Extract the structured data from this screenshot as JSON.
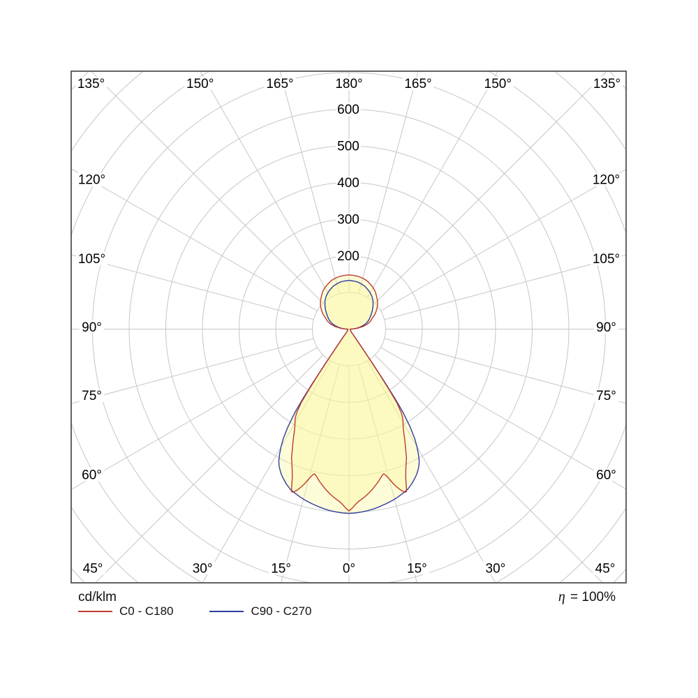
{
  "chart_data": {
    "type": "polar",
    "unit": "cd/klm",
    "efficiency": {
      "symbol": "η",
      "value": "= 100%"
    },
    "radial_ticks": [
      200,
      300,
      400,
      500,
      600
    ],
    "radial_step": 100,
    "radial_max_grid": 1000,
    "angle_step_deg": 15,
    "angle_labels": {
      "top": [
        "135°",
        "150°",
        "165°",
        "180°",
        "165°",
        "150°",
        "135°"
      ],
      "bottom": [
        "45°",
        "30°",
        "15°",
        "0°",
        "15°",
        "30°",
        "45°"
      ],
      "sides": [
        "120°",
        "105°",
        "90°",
        "75°",
        "60°"
      ]
    },
    "grid_color": "#c6c6c6",
    "border_color": "#3d3d3d",
    "fill_color": "rgba(250,246,152,0.38)",
    "symmetric": true,
    "series": [
      {
        "name": "C0 - C180",
        "color": "#bf3a2e",
        "points": [
          [
            0,
            496
          ],
          [
            1,
            489
          ],
          [
            2,
            480
          ],
          [
            3,
            472
          ],
          [
            4,
            467
          ],
          [
            5,
            462
          ],
          [
            6,
            456
          ],
          [
            7,
            450
          ],
          [
            8,
            444
          ],
          [
            9,
            437
          ],
          [
            10,
            430
          ],
          [
            11,
            423
          ],
          [
            12,
            415
          ],
          [
            13,
            408
          ],
          [
            13.5,
            406
          ],
          [
            14,
            410
          ],
          [
            15,
            423
          ],
          [
            16,
            439
          ],
          [
            17,
            452
          ],
          [
            18,
            463
          ],
          [
            19,
            471
          ],
          [
            19.5,
            470
          ],
          [
            20,
            458
          ],
          [
            20.5,
            444
          ],
          [
            21,
            432
          ],
          [
            22,
            414
          ],
          [
            23,
            399
          ],
          [
            24,
            386
          ],
          [
            25,
            367
          ],
          [
            26,
            350
          ],
          [
            27,
            334
          ],
          [
            28,
            318
          ],
          [
            29,
            305
          ],
          [
            30,
            295
          ],
          [
            31,
            285
          ],
          [
            32,
            270
          ],
          [
            33,
            240
          ],
          [
            33.5,
            200
          ],
          [
            34,
            150
          ],
          [
            34.5,
            95
          ],
          [
            35,
            55
          ],
          [
            36,
            25
          ],
          [
            37,
            14
          ],
          [
            38,
            10
          ],
          [
            40,
            8
          ],
          [
            45,
            6
          ],
          [
            50,
            5
          ],
          [
            55,
            4.5
          ],
          [
            60,
            4
          ],
          [
            65,
            3.5
          ],
          [
            70,
            3
          ],
          [
            75,
            3
          ],
          [
            80,
            3
          ],
          [
            85,
            3
          ],
          [
            88,
            3.5
          ],
          [
            90,
            4
          ],
          [
            92,
            10
          ],
          [
            95,
            22
          ],
          [
            100,
            38
          ],
          [
            105,
            52
          ],
          [
            110,
            62
          ],
          [
            115,
            70
          ],
          [
            120,
            82
          ],
          [
            125,
            92
          ],
          [
            130,
            102
          ],
          [
            135,
            110
          ],
          [
            140,
            117
          ],
          [
            145,
            125
          ],
          [
            150,
            131
          ],
          [
            155,
            136
          ],
          [
            160,
            141
          ],
          [
            165,
            144
          ],
          [
            170,
            146
          ],
          [
            175,
            147
          ],
          [
            180,
            148
          ]
        ]
      },
      {
        "name": "C90 - C270",
        "color": "#2f3d9e",
        "points": [
          [
            0,
            503
          ],
          [
            2,
            502
          ],
          [
            4,
            500
          ],
          [
            6,
            498
          ],
          [
            8,
            495
          ],
          [
            10,
            491
          ],
          [
            12,
            487
          ],
          [
            14,
            483
          ],
          [
            16,
            478
          ],
          [
            18,
            472
          ],
          [
            20,
            466
          ],
          [
            22,
            456
          ],
          [
            24,
            444
          ],
          [
            25,
            437
          ],
          [
            26,
            429
          ],
          [
            27,
            420
          ],
          [
            28,
            408
          ],
          [
            29,
            391
          ],
          [
            30,
            371
          ],
          [
            31,
            348
          ],
          [
            32,
            315
          ],
          [
            33,
            270
          ],
          [
            33.5,
            228
          ],
          [
            34,
            175
          ],
          [
            34.5,
            115
          ],
          [
            35,
            62
          ],
          [
            36,
            30
          ],
          [
            37,
            17
          ],
          [
            38,
            12
          ],
          [
            40,
            9
          ],
          [
            45,
            7
          ],
          [
            50,
            5.5
          ],
          [
            55,
            4.5
          ],
          [
            60,
            4
          ],
          [
            65,
            3.5
          ],
          [
            70,
            3
          ],
          [
            75,
            3
          ],
          [
            80,
            3
          ],
          [
            85,
            3
          ],
          [
            88,
            3.5
          ],
          [
            90,
            4
          ],
          [
            92,
            8
          ],
          [
            95,
            18
          ],
          [
            100,
            30
          ],
          [
            105,
            42
          ],
          [
            110,
            52
          ],
          [
            115,
            60
          ],
          [
            120,
            67
          ],
          [
            125,
            75
          ],
          [
            130,
            84
          ],
          [
            135,
            93
          ],
          [
            140,
            102
          ],
          [
            145,
            109
          ],
          [
            150,
            115
          ],
          [
            155,
            120
          ],
          [
            160,
            125
          ],
          [
            165,
            128
          ],
          [
            170,
            131
          ],
          [
            175,
            132
          ],
          [
            180,
            133
          ]
        ]
      }
    ]
  }
}
